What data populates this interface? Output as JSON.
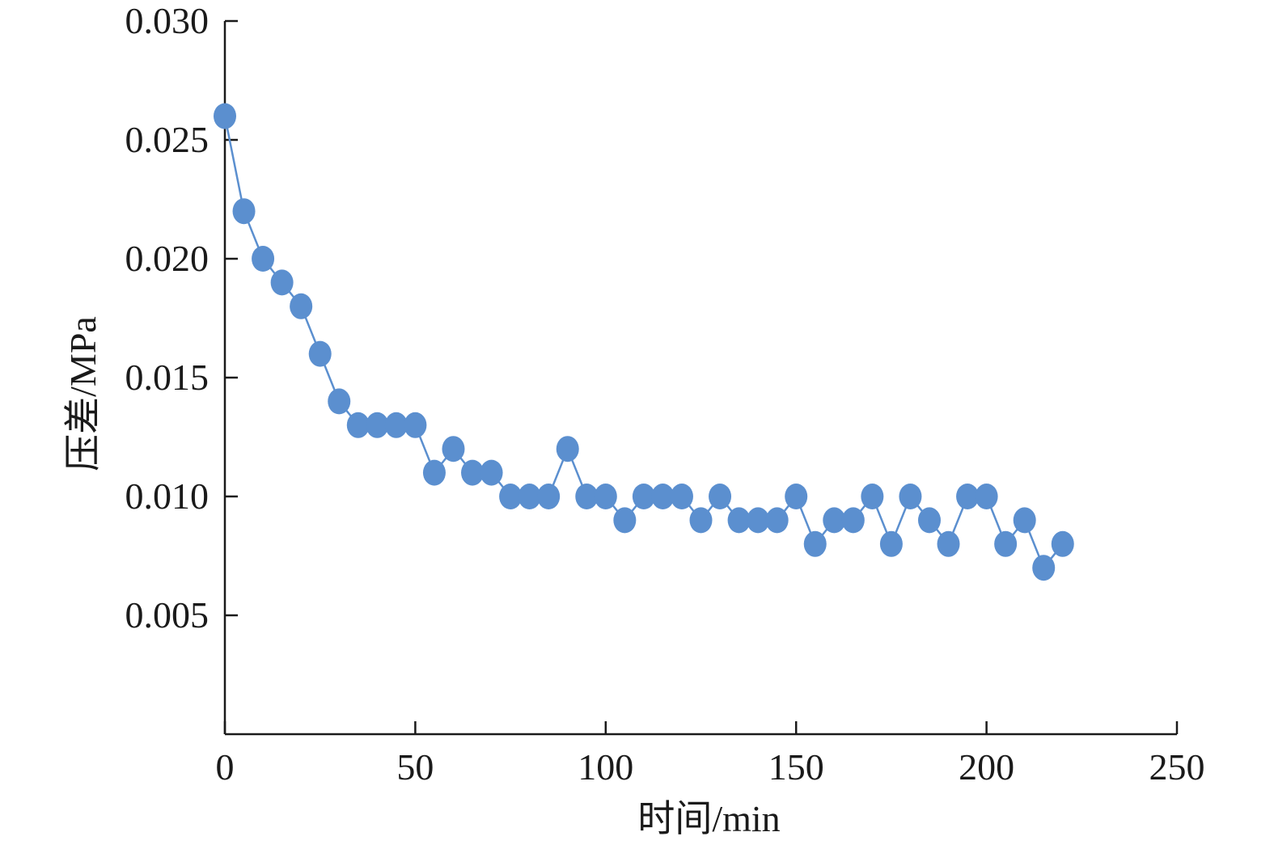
{
  "chart_data": {
    "type": "line",
    "title": "",
    "xlabel": "时间/min",
    "ylabel": "压差/MPa",
    "xlim": [
      0,
      250
    ],
    "ylim": [
      0,
      0.03
    ],
    "xticks": [
      0,
      50,
      100,
      150,
      200,
      250
    ],
    "xtick_labels": [
      "0",
      "50",
      "100",
      "150",
      "200",
      "250"
    ],
    "yticks": [
      0.005,
      0.01,
      0.015,
      0.02,
      0.025,
      0.03
    ],
    "ytick_labels": [
      "0.005",
      "0.010",
      "0.015",
      "0.020",
      "0.025",
      "0.030"
    ],
    "grid": false,
    "legend": "none",
    "series": [
      {
        "color": "#5b8fcf",
        "x": [
          0,
          5,
          10,
          15,
          20,
          25,
          30,
          35,
          40,
          45,
          50,
          55,
          60,
          65,
          70,
          75,
          80,
          85,
          90,
          95,
          100,
          105,
          110,
          115,
          120,
          125,
          130,
          135,
          140,
          145,
          150,
          155,
          160,
          165,
          170,
          175,
          180,
          185,
          190,
          195,
          200,
          205,
          210,
          215,
          220
        ],
        "values": [
          0.026,
          0.022,
          0.02,
          0.019,
          0.018,
          0.016,
          0.014,
          0.013,
          0.013,
          0.013,
          0.013,
          0.011,
          0.012,
          0.011,
          0.011,
          0.01,
          0.01,
          0.01,
          0.012,
          0.01,
          0.01,
          0.009,
          0.01,
          0.01,
          0.01,
          0.009,
          0.01,
          0.009,
          0.009,
          0.009,
          0.01,
          0.008,
          0.009,
          0.009,
          0.01,
          0.008,
          0.01,
          0.009,
          0.008,
          0.01,
          0.01,
          0.008,
          0.009,
          0.007,
          0.008
        ]
      }
    ]
  }
}
